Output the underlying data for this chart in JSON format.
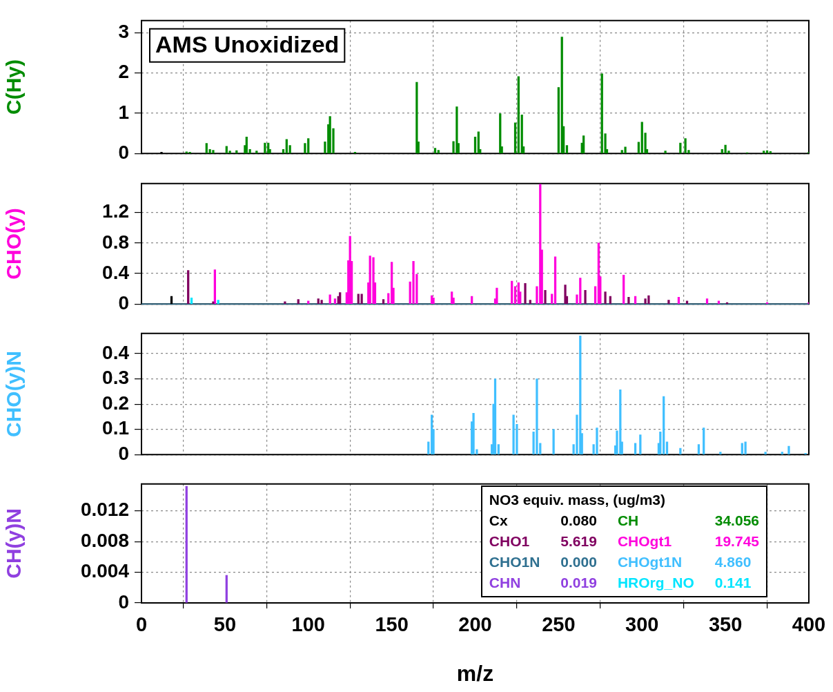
{
  "chart_data": [
    {
      "type": "bar",
      "title": "AMS Unoxidized",
      "ylabel": "C(Hy)",
      "xlim": [
        0,
        400
      ],
      "xticks": [
        0,
        50,
        100,
        150,
        200,
        250,
        300,
        350,
        400
      ],
      "ylim": [
        0,
        3.3
      ],
      "yticks": [
        0,
        1,
        2,
        3
      ],
      "grid": true,
      "tick_labels": "y",
      "series": [
        {
          "name": "Cx",
          "color": "#000000",
          "x": [
            12
          ],
          "values": [
            0.03
          ]
        },
        {
          "name": "CH",
          "color": "#008c00",
          "x": [
            27,
            29,
            39,
            41,
            43,
            51,
            53,
            57,
            62,
            63,
            65,
            69,
            74,
            76,
            77,
            85,
            87,
            89,
            98,
            100,
            110,
            112,
            113,
            115,
            128,
            165,
            166,
            176,
            178,
            187,
            189,
            190,
            200,
            202,
            203,
            215,
            216,
            224,
            226,
            228,
            229,
            250,
            252,
            253,
            255,
            264,
            265,
            276,
            278,
            279,
            288,
            290,
            298,
            300,
            302,
            303,
            314,
            323,
            326,
            328,
            348,
            350,
            352,
            363,
            373,
            375,
            377,
            400
          ],
          "values": [
            0.04,
            0.03,
            0.25,
            0.1,
            0.08,
            0.18,
            0.06,
            0.07,
            0.2,
            0.41,
            0.1,
            0.06,
            0.26,
            0.26,
            0.1,
            0.1,
            0.35,
            0.2,
            0.25,
            0.37,
            0.29,
            0.72,
            0.92,
            0.62,
            0.03,
            1.77,
            0.29,
            0.13,
            0.08,
            0.3,
            1.16,
            0.25,
            0.41,
            0.54,
            0.1,
            0.99,
            0.17,
            0.76,
            1.91,
            0.96,
            0.17,
            1.64,
            2.89,
            0.67,
            0.2,
            0.26,
            0.44,
            1.98,
            0.49,
            0.1,
            0.08,
            0.16,
            0.28,
            0.78,
            0.51,
            0.1,
            0.06,
            0.26,
            0.37,
            0.08,
            0.1,
            0.21,
            0.06,
            0.02,
            0.06,
            0.07,
            0.05,
            0.03
          ]
        }
      ]
    },
    {
      "type": "bar",
      "ylabel": "CHO(y)",
      "xlim": [
        0,
        400
      ],
      "xticks": [
        0,
        50,
        100,
        150,
        200,
        250,
        300,
        350,
        400
      ],
      "ylim": [
        0,
        1.58
      ],
      "yticks": [
        0,
        0.4,
        0.8,
        1.2
      ],
      "grid": true,
      "tick_labels": "y",
      "series": [
        {
          "color": "#000000",
          "x": [
            18
          ],
          "values": [
            0.1
          ]
        },
        {
          "name": "HROrg_NO",
          "color": "#00e5ff",
          "x": [
            30,
            46
          ],
          "values": [
            0.08,
            0.05
          ]
        },
        {
          "name": "CHO1N",
          "color": "#2f7090",
          "type": "line",
          "x": [
            0,
            400
          ],
          "values": [
            0,
            0
          ]
        },
        {
          "name": "CHO1",
          "color": "#800060",
          "x": [
            28,
            43,
            86,
            94,
            106,
            108,
            118,
            119,
            130,
            132,
            145,
            230,
            233,
            242,
            254,
            255,
            266,
            278,
            281,
            292,
            302,
            304,
            316,
            327,
            351
          ],
          "values": [
            0.44,
            0.03,
            0.03,
            0.06,
            0.07,
            0.05,
            0.1,
            0.15,
            0.13,
            0.13,
            0.06,
            0.27,
            0.05,
            0.18,
            0.25,
            0.1,
            0.18,
            0.16,
            0.1,
            0.09,
            0.07,
            0.11,
            0.05,
            0.04,
            0.02
          ]
        },
        {
          "name": "CHOgt1",
          "color": "#ff00dc",
          "x": [
            44,
            100,
            113,
            116,
            123,
            124,
            125,
            126,
            136,
            137,
            139,
            140,
            148,
            150,
            151,
            161,
            163,
            165,
            174,
            175,
            186,
            187,
            198,
            212,
            213,
            222,
            224,
            226,
            227,
            237,
            239,
            240,
            246,
            248,
            261,
            263,
            272,
            274,
            275,
            289,
            296,
            322,
            339,
            346,
            375,
            400
          ],
          "values": [
            0.45,
            0.04,
            0.12,
            0.07,
            0.15,
            0.57,
            0.89,
            0.56,
            0.28,
            0.63,
            0.61,
            0.28,
            0.14,
            0.55,
            0.21,
            0.29,
            0.56,
            0.39,
            0.11,
            0.08,
            0.16,
            0.08,
            0.1,
            0.07,
            0.21,
            0.3,
            0.23,
            0.28,
            0.16,
            0.23,
            1.57,
            0.71,
            0.13,
            0.62,
            0.12,
            0.34,
            0.23,
            0.8,
            0.36,
            0.38,
            0.1,
            0.09,
            0.07,
            0.04,
            0.02,
            0.02
          ]
        }
      ]
    },
    {
      "type": "bar",
      "ylabel": "CHO(y)N",
      "xlim": [
        0,
        400
      ],
      "xticks": [
        0,
        50,
        100,
        150,
        200,
        250,
        300,
        350,
        400
      ],
      "ylim": [
        0,
        0.48
      ],
      "yticks": [
        0,
        0.1,
        0.2,
        0.3,
        0.4
      ],
      "grid": true,
      "tick_labels": "y",
      "series": [
        {
          "name": "CHOgt1N",
          "color": "#40bfff",
          "x": [
            172,
            174,
            175,
            198,
            199,
            201,
            210,
            211,
            212,
            214,
            223,
            225,
            235,
            237,
            239,
            247,
            259,
            261,
            263,
            264,
            271,
            273,
            284,
            285,
            287,
            288,
            296,
            299,
            310,
            311,
            313,
            315,
            323,
            334,
            337,
            347,
            360,
            362,
            374,
            384,
            388,
            398
          ],
          "values": [
            0.05,
            0.157,
            0.1,
            0.13,
            0.164,
            0.02,
            0.04,
            0.2,
            0.3,
            0.04,
            0.157,
            0.12,
            0.09,
            0.3,
            0.045,
            0.1,
            0.04,
            0.157,
            0.47,
            0.084,
            0.04,
            0.106,
            0.035,
            0.094,
            0.257,
            0.05,
            0.045,
            0.078,
            0.045,
            0.09,
            0.23,
            0.05,
            0.025,
            0.04,
            0.106,
            0.01,
            0.045,
            0.05,
            0.01,
            0.01,
            0.033,
            0.005
          ]
        }
      ]
    },
    {
      "type": "bar",
      "ylabel": "CH(y)N",
      "xlabel": "m/z",
      "xlim": [
        0,
        400
      ],
      "xticks": [
        0,
        50,
        100,
        150,
        200,
        250,
        300,
        350,
        400
      ],
      "ylim": [
        0,
        0.0155
      ],
      "yticks": [
        0,
        0.004,
        0.008,
        0.012
      ],
      "grid": true,
      "legend": "bottom right",
      "legend_title": "NO3 equiv. mass, (ug/m3)",
      "annotations": [
        "0.080",
        "34.056",
        "5.619",
        "19.745",
        "0.000",
        "4.860",
        "0.019",
        "0.141"
      ],
      "series": [
        {
          "name": "CHN",
          "color": "#9040e0",
          "x": [
            27,
            51
          ],
          "values": [
            0.0152,
            0.0036
          ]
        }
      ]
    }
  ]
}
